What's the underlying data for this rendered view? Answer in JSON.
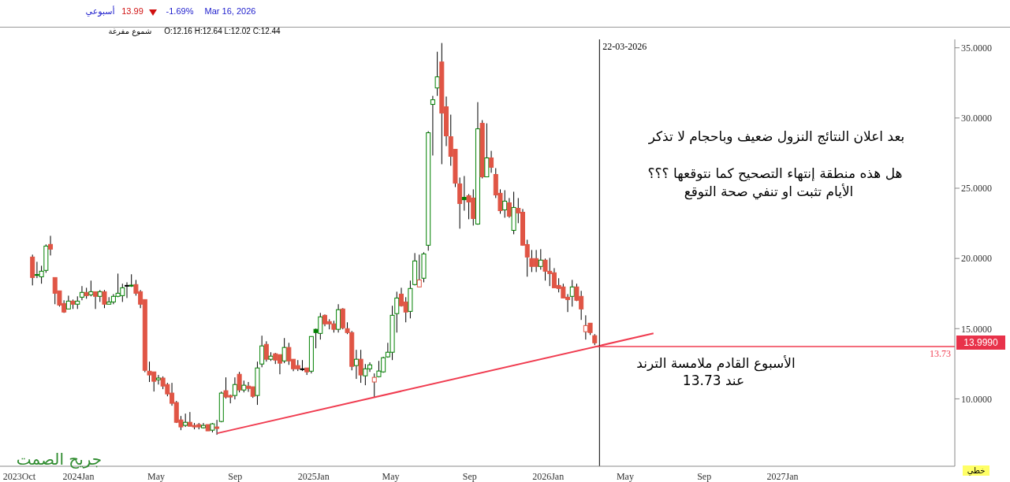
{
  "chart_data": {
    "type": "candlestick",
    "x": [
      "2023-10-22",
      "2023-10-29",
      "2023-11-05",
      "2023-11-12",
      "2023-11-19",
      "2023-11-26",
      "2023-12-03",
      "2023-12-10",
      "2023-12-17",
      "2023-12-24",
      "2023-12-31",
      "2024-01-07",
      "2024-01-14",
      "2024-01-21",
      "2024-01-28",
      "2024-02-04",
      "2024-02-11",
      "2024-02-18",
      "2024-02-25",
      "2024-03-03",
      "2024-03-10",
      "2024-03-17",
      "2024-03-24",
      "2024-03-31",
      "2024-04-07",
      "2024-04-14",
      "2024-04-21",
      "2024-04-28",
      "2024-05-05",
      "2024-05-12",
      "2024-05-19",
      "2024-05-26",
      "2024-06-02",
      "2024-06-09",
      "2024-06-16",
      "2024-06-23",
      "2024-06-30",
      "2024-07-07",
      "2024-07-14",
      "2024-07-21",
      "2024-07-28",
      "2024-08-04",
      "2024-08-11",
      "2024-08-18",
      "2024-08-25",
      "2024-09-01",
      "2024-09-08",
      "2024-09-15",
      "2024-09-22",
      "2024-09-29",
      "2024-10-06",
      "2024-10-13",
      "2024-10-20",
      "2024-10-27",
      "2024-11-03",
      "2024-11-10",
      "2024-11-17",
      "2024-11-24",
      "2024-12-01",
      "2024-12-08",
      "2024-12-15",
      "2024-12-22",
      "2024-12-29",
      "2025-01-05",
      "2025-01-12",
      "2025-01-19",
      "2025-01-26",
      "2025-02-02",
      "2025-02-09",
      "2025-02-16",
      "2025-02-23",
      "2025-03-02",
      "2025-03-09",
      "2025-03-16",
      "2025-03-23",
      "2025-03-30",
      "2025-04-06",
      "2025-04-13",
      "2025-04-20",
      "2025-04-27",
      "2025-05-04",
      "2025-05-11",
      "2025-05-18",
      "2025-05-25",
      "2025-06-01",
      "2025-06-08",
      "2025-06-15",
      "2025-06-22",
      "2025-06-29",
      "2025-07-06",
      "2025-07-13",
      "2025-07-20",
      "2025-07-27",
      "2025-08-03",
      "2025-08-10",
      "2025-08-17",
      "2025-08-24",
      "2025-08-31",
      "2025-09-07",
      "2025-09-14",
      "2025-09-21",
      "2025-09-28",
      "2025-10-05",
      "2025-10-12",
      "2025-10-19",
      "2025-10-26",
      "2025-11-02",
      "2025-11-09",
      "2025-11-16",
      "2025-11-23",
      "2025-11-30",
      "2025-12-07",
      "2025-12-14",
      "2025-12-21",
      "2025-12-28",
      "2026-01-04",
      "2026-01-11",
      "2026-01-18",
      "2026-01-25",
      "2026-02-01",
      "2026-02-08",
      "2026-02-15",
      "2026-02-22",
      "2026-03-01",
      "2026-03-08",
      "2026-03-15"
    ],
    "ohlc": [
      [
        20.1,
        20.27,
        18.08,
        18.64
      ],
      [
        18.85,
        19.76,
        18.6,
        18.8
      ],
      [
        18.69,
        19.48,
        18.2,
        19.09
      ],
      [
        19.15,
        21.0,
        18.98,
        20.88
      ],
      [
        21.0,
        21.61,
        20.21,
        20.66
      ],
      [
        18.64,
        18.64,
        16.74,
        17.52
      ],
      [
        17.69,
        17.69,
        16.57,
        16.68
      ],
      [
        16.79,
        17.02,
        16.12,
        16.18
      ],
      [
        16.4,
        17.35,
        16.4,
        16.96
      ],
      [
        16.96,
        17.07,
        16.4,
        16.74
      ],
      [
        16.74,
        17.3,
        16.4,
        16.96
      ],
      [
        17.24,
        18.03,
        17.02,
        17.58
      ],
      [
        17.58,
        17.91,
        17.13,
        17.35
      ],
      [
        17.41,
        18.42,
        17.3,
        17.63
      ],
      [
        17.63,
        17.63,
        16.4,
        17.3
      ],
      [
        17.3,
        17.75,
        16.9,
        17.63
      ],
      [
        17.63,
        17.75,
        16.46,
        16.74
      ],
      [
        16.74,
        17.24,
        16.74,
        16.9
      ],
      [
        16.9,
        17.46,
        16.74,
        17.3
      ],
      [
        17.3,
        18.92,
        17.24,
        17.52
      ],
      [
        17.35,
        18.2,
        16.9,
        17.91
      ],
      [
        18.08,
        18.3,
        17.18,
        18.08
      ],
      [
        18.1,
        18.87,
        17.97,
        18.03
      ],
      [
        18.14,
        18.47,
        17.35,
        17.52
      ],
      [
        17.63,
        17.75,
        16.46,
        16.74
      ],
      [
        17.07,
        17.07,
        11.9,
        12.03
      ],
      [
        11.97,
        12.65,
        11.2,
        11.7
      ],
      [
        11.92,
        11.92,
        10.52,
        11.25
      ],
      [
        11.36,
        11.7,
        11.02,
        11.48
      ],
      [
        11.48,
        11.6,
        10.69,
        10.91
      ],
      [
        11.02,
        11.14,
        10.18,
        10.35
      ],
      [
        10.41,
        11.14,
        9.51,
        9.68
      ],
      [
        9.74,
        9.85,
        8.28,
        8.33
      ],
      [
        8.5,
        8.78,
        7.77,
        8.0
      ],
      [
        8.11,
        8.95,
        8.0,
        8.33
      ],
      [
        8.33,
        9.06,
        8.05,
        8.05
      ],
      [
        8.11,
        8.28,
        7.83,
        8.0
      ],
      [
        8.17,
        8.28,
        7.83,
        8.0
      ],
      [
        7.94,
        8.28,
        7.89,
        8.11
      ],
      [
        8.17,
        8.17,
        7.72,
        7.72
      ],
      [
        7.77,
        8.28,
        7.61,
        8.22
      ],
      [
        8.0,
        8.5,
        7.44,
        7.89
      ],
      [
        8.39,
        10.52,
        8.33,
        10.41
      ],
      [
        10.58,
        11.53,
        10.02,
        10.13
      ],
      [
        10.24,
        10.3,
        9.68,
        10.13
      ],
      [
        10.24,
        11.53,
        9.96,
        11.02
      ],
      [
        11.75,
        11.92,
        10.46,
        10.63
      ],
      [
        10.63,
        11.3,
        10.46,
        10.97
      ],
      [
        10.91,
        11.2,
        10.5,
        10.74
      ],
      [
        10.86,
        10.86,
        10.07,
        10.18
      ],
      [
        10.24,
        12.65,
        9.57,
        12.2
      ],
      [
        12.48,
        14.5,
        12.25,
        13.77
      ],
      [
        13.88,
        14.1,
        12.65,
        12.82
      ],
      [
        12.82,
        13.32,
        12.7,
        13.04
      ],
      [
        13.21,
        13.27,
        12.48,
        12.76
      ],
      [
        13.15,
        13.15,
        11.75,
        12.54
      ],
      [
        12.7,
        14.33,
        12.54,
        13.66
      ],
      [
        13.66,
        13.99,
        12.42,
        12.7
      ],
      [
        12.82,
        12.82,
        11.97,
        12.14
      ],
      [
        12.37,
        12.76,
        11.98,
        12.14
      ],
      [
        12.14,
        12.76,
        11.98,
        12.14
      ],
      [
        12.2,
        12.2,
        11.7,
        11.92
      ],
      [
        11.97,
        14.44,
        11.81,
        14.44
      ],
      [
        14.95,
        15.0,
        13.6,
        14.72
      ],
      [
        14.66,
        16.12,
        14.22,
        15.84
      ],
      [
        15.95,
        16.01,
        15.17,
        15.34
      ],
      [
        15.5,
        15.67,
        14.95,
        15.34
      ],
      [
        15.34,
        15.56,
        14.72,
        14.95
      ],
      [
        14.95,
        16.74,
        14.72,
        16.35
      ],
      [
        16.4,
        16.46,
        14.95,
        15.06
      ],
      [
        15.0,
        15.45,
        14.61,
        14.72
      ],
      [
        14.72,
        14.83,
        12.03,
        12.31
      ],
      [
        12.37,
        13.49,
        11.42,
        12.82
      ],
      [
        12.82,
        13.49,
        11.14,
        11.7
      ],
      [
        11.64,
        12.48,
        10.97,
        12.14
      ],
      [
        12.14,
        12.6,
        11.92,
        12.42
      ],
      [
        11.2,
        11.81,
        10.13,
        11.53
      ],
      [
        11.58,
        12.7,
        11.53,
        11.98
      ],
      [
        11.92,
        13.0,
        11.86,
        12.93
      ],
      [
        12.99,
        13.99,
        12.93,
        13.32
      ],
      [
        13.32,
        16.63,
        12.76,
        15.95
      ],
      [
        16.07,
        17.63,
        14.72,
        17.18
      ],
      [
        17.46,
        17.91,
        16.57,
        16.63
      ],
      [
        16.9,
        17.24,
        15.45,
        16.18
      ],
      [
        16.23,
        18.42,
        15.73,
        17.86
      ],
      [
        18.14,
        20.38,
        18.08,
        19.82
      ],
      [
        17.97,
        20.27,
        17.97,
        18.47
      ],
      [
        18.59,
        20.44,
        18.3,
        20.32
      ],
      [
        20.94,
        29.06,
        20.55,
        28.95
      ],
      [
        30.97,
        31.58,
        27.33,
        31.3
      ],
      [
        32.14,
        34.72,
        31.58,
        32.93
      ],
      [
        33.99,
        35.34,
        26.71,
        30.35
      ],
      [
        30.8,
        31.53,
        28.0,
        28.73
      ],
      [
        28.67,
        30.24,
        26.6,
        27.27
      ],
      [
        27.77,
        27.77,
        25.08,
        25.36
      ],
      [
        25.31,
        25.76,
        22.12,
        23.91
      ],
      [
        24.35,
        25.87,
        23.4,
        24.18
      ],
      [
        24.47,
        24.58,
        22.79,
        24.02
      ],
      [
        24.3,
        24.92,
        22.34,
        22.84
      ],
      [
        22.45,
        31.13,
        22.4,
        29.23
      ],
      [
        29.62,
        29.85,
        25.7,
        25.81
      ],
      [
        25.81,
        29.62,
        25.81,
        27.16
      ],
      [
        27.16,
        27.66,
        26.1,
        26.49
      ],
      [
        25.98,
        26.43,
        24.3,
        24.52
      ],
      [
        24.64,
        24.92,
        23.18,
        23.4
      ],
      [
        23.46,
        24.86,
        22.9,
        24.08
      ],
      [
        23.96,
        24.3,
        22.9,
        23.01
      ],
      [
        22.0,
        24.75,
        21.72,
        23.63
      ],
      [
        23.57,
        24.3,
        22.51,
        23.24
      ],
      [
        23.29,
        23.52,
        20.9,
        20.94
      ],
      [
        20.99,
        21.33,
        18.7,
        20.1
      ],
      [
        19.99,
        20.6,
        19.03,
        19.43
      ],
      [
        19.99,
        20.6,
        19.03,
        19.43
      ],
      [
        19.43,
        20.66,
        19.2,
        19.88
      ],
      [
        19.88,
        19.99,
        18.42,
        19.09
      ],
      [
        19.09,
        20.04,
        18.03,
        18.92
      ],
      [
        18.98,
        19.31,
        17.91,
        17.91
      ],
      [
        18.08,
        18.59,
        17.58,
        17.86
      ],
      [
        17.97,
        18.2,
        17.18,
        17.18
      ],
      [
        17.24,
        17.46,
        16.18,
        17.07
      ],
      [
        17.3,
        18.47,
        16.57,
        17.97
      ],
      [
        17.97,
        18.2,
        16.96,
        17.02
      ],
      [
        17.3,
        17.69,
        15.62,
        16.4
      ],
      [
        14.78,
        15.95,
        14.22,
        15.22
      ],
      [
        15.39,
        15.39,
        14.55,
        14.72
      ],
      [
        14.5,
        14.61,
        13.83,
        13.99
      ]
    ],
    "colors": [
      "#e05545",
      "#008000",
      "#008000",
      "#008000",
      "#e05545",
      "#e05545",
      "#e05545",
      "#e05545",
      "#008000",
      "#e05545",
      "#008000",
      "#008000",
      "#e05545",
      "#008000",
      "#e05545",
      "#008000",
      "#e05545",
      "#008000",
      "#008000",
      "#008000",
      "#008000",
      "#000000",
      "#008000",
      "#e05545",
      "#e05545",
      "#e05545",
      "#e05545",
      "#e05545",
      "#008000",
      "#e05545",
      "#e05545",
      "#e05545",
      "#e05545",
      "#e05545",
      "#008000",
      "#e05545",
      "#e05545",
      "#e05545",
      "#008000",
      "#e05545",
      "#008000",
      "#e05545",
      "#008000",
      "#e05545",
      "#e05545",
      "#008000",
      "#e05545",
      "#008000",
      "#e05545",
      "#e05545",
      "#008000",
      "#008000",
      "#e05545",
      "#008000",
      "#e05545",
      "#e05545",
      "#008000",
      "#e05545",
      "#e05545",
      "#e05545",
      "#000000",
      "#e05545",
      "#008000",
      "#008000",
      "#008000",
      "#e05545",
      "#e05545",
      "#e05545",
      "#008000",
      "#e05545",
      "#e05545",
      "#e05545",
      "#008000",
      "#e05545",
      "#008000",
      "#008000",
      "#e05545",
      "#008000",
      "#008000",
      "#008000",
      "#008000",
      "#008000",
      "#e05545",
      "#e05545",
      "#008000",
      "#008000",
      "#e05545",
      "#008000",
      "#008000",
      "#008000",
      "#008000",
      "#e05545",
      "#e05545",
      "#e05545",
      "#e05545",
      "#e05545",
      "#008000",
      "#e05545",
      "#e05545",
      "#008000",
      "#e05545",
      "#008000",
      "#e05545",
      "#e05545",
      "#e05545",
      "#008000",
      "#e05545",
      "#008000",
      "#e05545",
      "#e05545",
      "#e05545",
      "#e05545",
      "#e05545",
      "#008000",
      "#e05545",
      "#e05545",
      "#e05545",
      "#e05545",
      "#e05545",
      "#e05545",
      "#008000",
      "#e05545",
      "#e05545",
      "#e05545",
      "#e05545",
      "#e05545"
    ],
    "series": [
      {
        "type": "line",
        "x": [
          "2024-08-04",
          "2026-06-14"
        ],
        "values": [
          7.55,
          14.66
        ],
        "color": "#f03c50"
      }
    ],
    "xlim": [
      "2023-09-01",
      "2027-09-26"
    ],
    "xticks": [
      {
        "value": "2023-10-01",
        "label": "2023Oct"
      },
      {
        "value": "2024-01-01",
        "label": "2024Jan"
      },
      {
        "value": "2024-05-01",
        "label": "May"
      },
      {
        "value": "2024-09-01",
        "label": "Sep"
      },
      {
        "value": "2025-01-01",
        "label": "2025Jan"
      },
      {
        "value": "2025-05-01",
        "label": "May"
      },
      {
        "value": "2025-09-01",
        "label": "Sep"
      },
      {
        "value": "2026-01-01",
        "label": "2026Jan"
      },
      {
        "value": "2026-05-01",
        "label": "May"
      },
      {
        "value": "2026-09-01",
        "label": "Sep"
      },
      {
        "value": "2027-01-01",
        "label": "2027Jan"
      }
    ],
    "ylim": [
      5.2,
      35.6
    ],
    "yticks": [
      {
        "value": 10,
        "label": "10.0000"
      },
      {
        "value": 15,
        "label": "15.0000"
      },
      {
        "value": 20,
        "label": "20.0000"
      },
      {
        "value": 25,
        "label": "25.0000"
      },
      {
        "value": 30,
        "label": "30.0000"
      },
      {
        "value": 35,
        "label": "35.0000"
      }
    ],
    "ref_lines": [
      {
        "axis": "x",
        "value": "2026-03-22",
        "label": "22-03-2026",
        "color": "#000000"
      },
      {
        "axis": "y",
        "value": 13.73,
        "label": "13.73",
        "color": "#f03c50"
      }
    ],
    "annotations": [
      "بعد اعلان النتائج النزول ضعيف وباحجام لا تذكر",
      "هل هذه منطقة إنتهاء التصحيح كما نتوقعها ؟؟؟",
      "الأيام تثبت او تنفي صحة التوقع",
      "الأسبوع القادم ملامسة الترند",
      "عند  13.73",
      "جريح الصمت",
      "أسبوعي",
      "13.99",
      "-1.69%",
      "Mar 16, 2026",
      "شموع مفرغة",
      "O:12.16 H:12.64 L:12.02 C:12.44",
      "خطي",
      "13.9990"
    ]
  }
}
